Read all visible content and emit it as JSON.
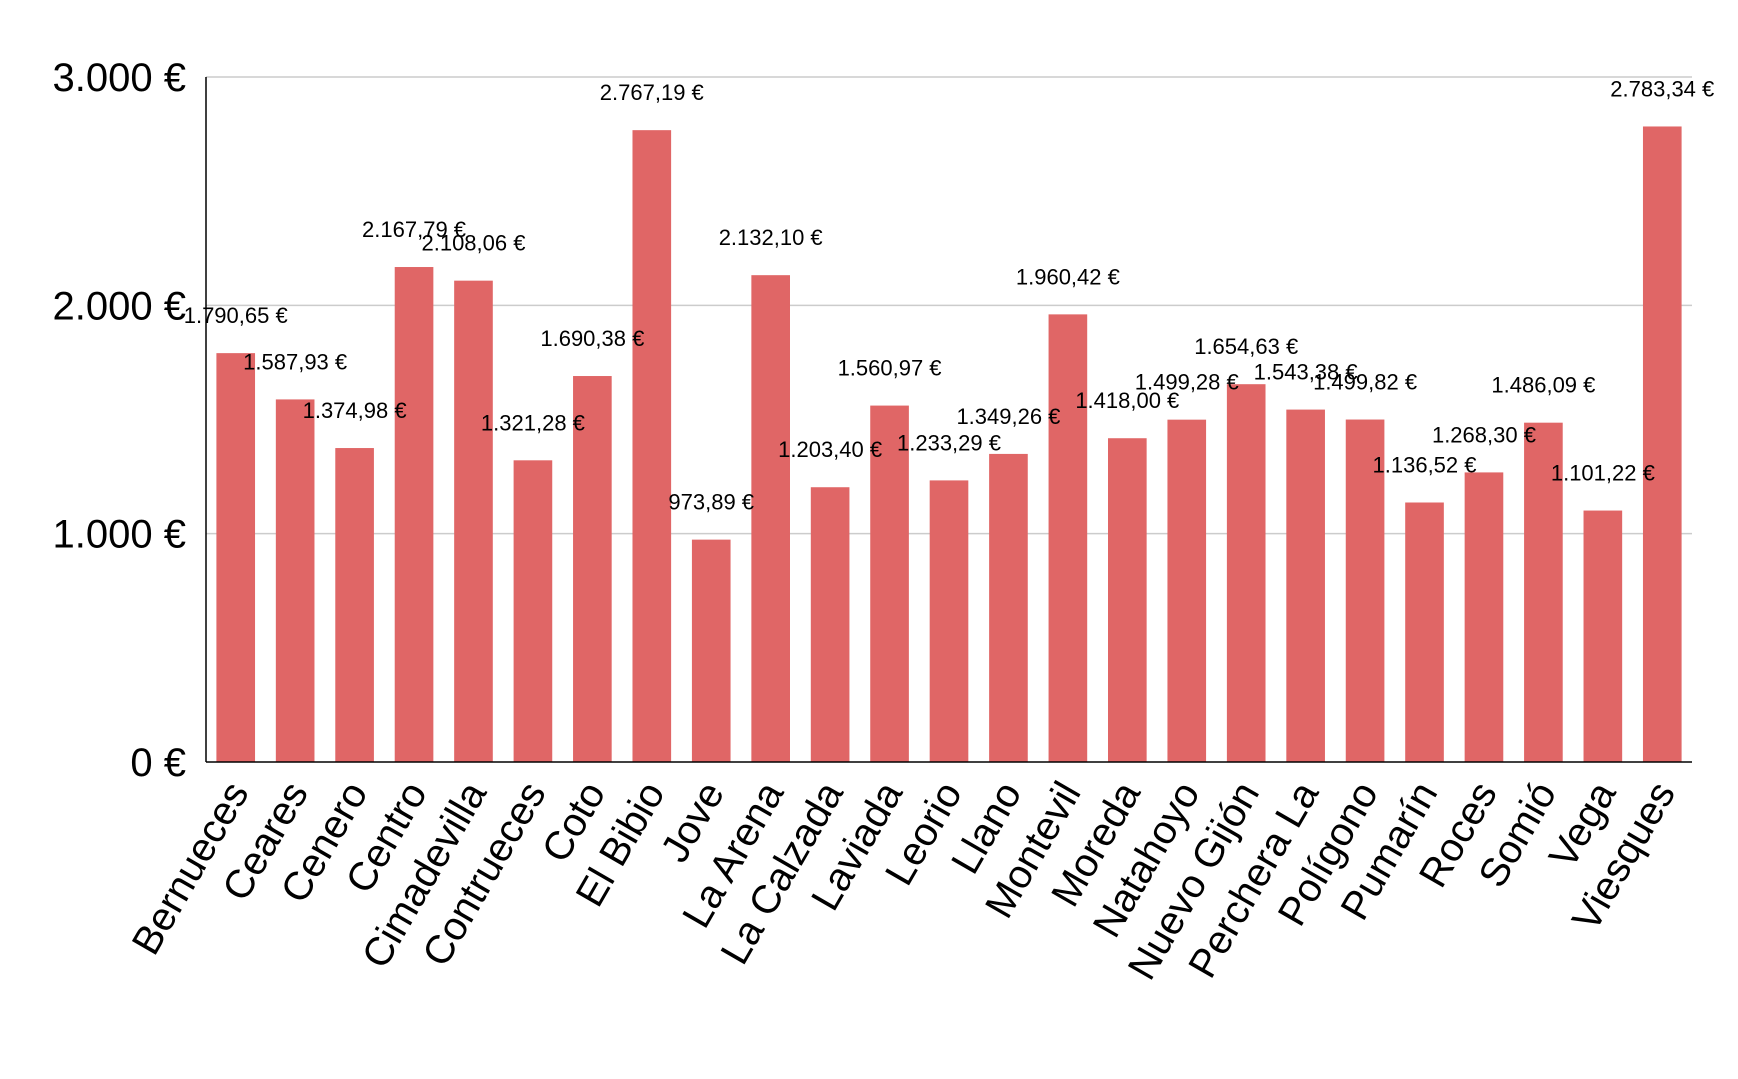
{
  "chart_data": {
    "type": "bar",
    "title": "",
    "xlabel": "",
    "ylabel": "",
    "ylim": [
      0,
      3000
    ],
    "yticks": [
      {
        "value": 0,
        "label": "0 €"
      },
      {
        "value": 1000,
        "label": "1.000 €"
      },
      {
        "value": 2000,
        "label": "2.000 €"
      },
      {
        "value": 3000,
        "label": "3.000 €"
      }
    ],
    "grid": true,
    "legend": "none",
    "bar_color": "#e06666",
    "categories": [
      "Bernueces",
      "Ceares",
      "Cenero",
      "Centro",
      "Cimadevilla",
      "Contrueces",
      "Coto",
      "El Bibio",
      "Jove",
      "La Arena",
      "La Calzada",
      "Laviada",
      "Leorio",
      "Llano",
      "Montevil",
      "Moreda",
      "Natahoyo",
      "Nuevo Gijón",
      "Perchera La",
      "Polígono",
      "Pumarín",
      "Roces",
      "Somió",
      "Vega",
      "Viesques"
    ],
    "values": [
      1790.65,
      1587.93,
      1374.98,
      2167.79,
      2108.06,
      1321.28,
      1690.38,
      2767.19,
      973.89,
      2132.1,
      1203.4,
      1560.97,
      1233.29,
      1349.26,
      1960.42,
      1418.0,
      1499.28,
      1654.63,
      1543.38,
      1499.82,
      1136.52,
      1268.3,
      1486.09,
      1101.22,
      2783.34
    ],
    "data_labels": [
      "1.790,65 €",
      "1.587,93 €",
      "1.374,98 €",
      "2.167,79 €",
      "2.108,06 €",
      "1.321,28 €",
      "1.690,38 €",
      "2.767,19 €",
      "973,89 €",
      "2.132,10 €",
      "1.203,40 €",
      "1.560,97 €",
      "1.233,29 €",
      "1.349,26 €",
      "1.960,42 €",
      "1.418,00 €",
      "1.499,28 €",
      "1.654,63 €",
      "1.543,38 €",
      "1.499,82 €",
      "1.136,52 €",
      "1.268,30 €",
      "1.486,09 €",
      "1.101,22 €",
      "2.783,34 €"
    ]
  }
}
